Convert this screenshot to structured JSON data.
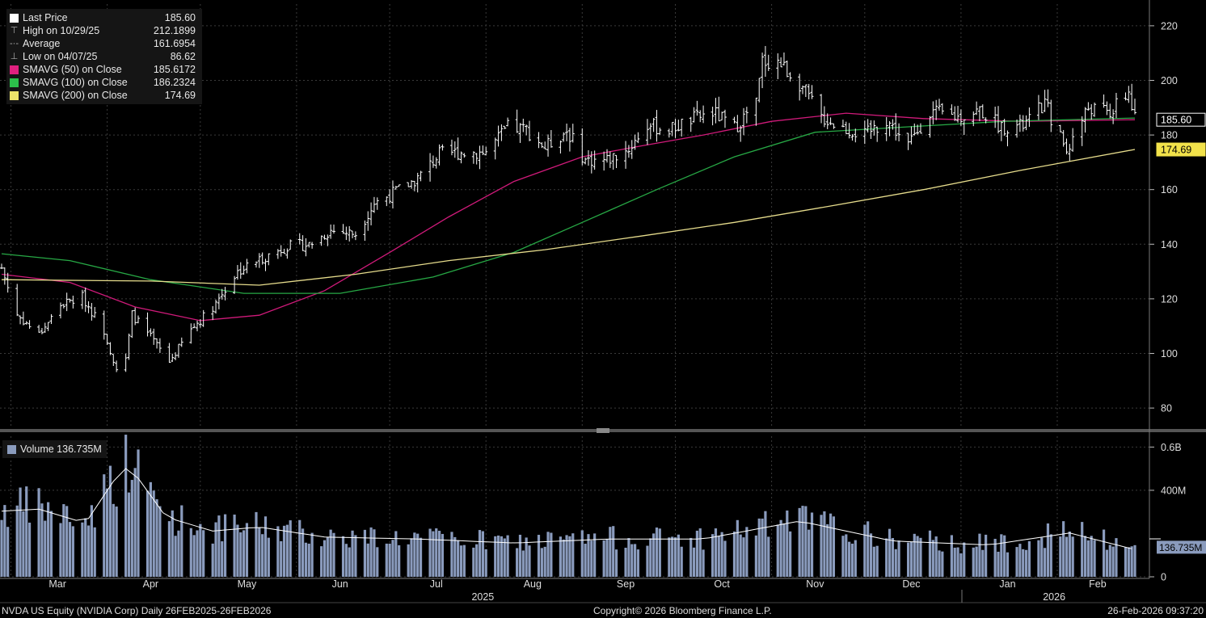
{
  "legend": {
    "last_price_label": "Last Price",
    "last_price_value": "185.60",
    "high_label": "High on 10/29/25",
    "high_value": "212.1899",
    "average_label": "Average",
    "average_value": "161.6954",
    "low_label": "Low on 04/07/25",
    "low_value": "86.62",
    "sma50_label": "SMAVG (50)  on Close",
    "sma50_value": "185.6172",
    "sma100_label": "SMAVG (100)  on Close",
    "sma100_value": "186.2324",
    "sma200_label": "SMAVG (200)  on Close",
    "sma200_value": "174.69",
    "volume_label": "Volume 136.735M"
  },
  "footer": {
    "left": "NVDA US Equity (NVIDIA Corp) Daily 26FEB2025-26FEB2026",
    "center": "Copyright© 2026 Bloomberg Finance L.P.",
    "right": "26-Feb-2026 09:37:20"
  },
  "colors": {
    "background": "#000000",
    "grid": "#3a3a3a",
    "bars": "#ffffff",
    "sma50": "#d01a7a",
    "sma100": "#27a845",
    "sma200": "#e6dc8c",
    "volume": "#8a9bbd",
    "volume_avg": "#ffffff"
  },
  "chart_data": [
    {
      "type": "ohlc",
      "title": "NVDA US Equity (NVIDIA Corp) Daily 26FEB2025-26FEB2026",
      "x_range": [
        "2025-02-26",
        "2026-02-26"
      ],
      "x_month_labels": [
        "Mar",
        "Apr",
        "May",
        "Jun",
        "Jul",
        "Aug",
        "Sep",
        "Oct",
        "Nov",
        "Dec",
        "Jan",
        "Feb"
      ],
      "x_year_labels": [
        "2025",
        "2026"
      ],
      "y_ticks": [
        80,
        100,
        120,
        140,
        160,
        180,
        200,
        220
      ],
      "ylim": [
        75,
        225
      ],
      "grid": true,
      "legend_position": "top-left",
      "price_path_approx": [
        {
          "date": "2025-02-26",
          "close": 131.3
        },
        {
          "date": "2025-03-03",
          "close": 114.1
        },
        {
          "date": "2025-03-10",
          "close": 106.9
        },
        {
          "date": "2025-03-17",
          "close": 117.7
        },
        {
          "date": "2025-03-24",
          "close": 120.7
        },
        {
          "date": "2025-03-31",
          "close": 108.4
        },
        {
          "date": "2025-04-04",
          "close": 94.3
        },
        {
          "date": "2025-04-07",
          "close": 97.6
        },
        {
          "date": "2025-04-09",
          "close": 114.3
        },
        {
          "date": "2025-04-16",
          "close": 104.5
        },
        {
          "date": "2025-04-21",
          "close": 96.9
        },
        {
          "date": "2025-04-28",
          "close": 108.7
        },
        {
          "date": "2025-05-05",
          "close": 117.1
        },
        {
          "date": "2025-05-13",
          "close": 129.9
        },
        {
          "date": "2025-05-20",
          "close": 134.4
        },
        {
          "date": "2025-05-29",
          "close": 139.2
        },
        {
          "date": "2025-06-05",
          "close": 139.9
        },
        {
          "date": "2025-06-12",
          "close": 145.0
        },
        {
          "date": "2025-06-20",
          "close": 143.9
        },
        {
          "date": "2025-06-26",
          "close": 155.0
        },
        {
          "date": "2025-07-03",
          "close": 159.3
        },
        {
          "date": "2025-07-10",
          "close": 164.1
        },
        {
          "date": "2025-07-17",
          "close": 173.0
        },
        {
          "date": "2025-07-24",
          "close": 173.7
        },
        {
          "date": "2025-08-01",
          "close": 173.7
        },
        {
          "date": "2025-08-08",
          "close": 182.7
        },
        {
          "date": "2025-08-14",
          "close": 182.0
        },
        {
          "date": "2025-08-20",
          "close": 175.4
        },
        {
          "date": "2025-08-27",
          "close": 181.6
        },
        {
          "date": "2025-09-02",
          "close": 170.8
        },
        {
          "date": "2025-09-09",
          "close": 170.8
        },
        {
          "date": "2025-09-16",
          "close": 174.9
        },
        {
          "date": "2025-09-22",
          "close": 183.6
        },
        {
          "date": "2025-09-29",
          "close": 181.9
        },
        {
          "date": "2025-10-06",
          "close": 185.5
        },
        {
          "date": "2025-10-13",
          "close": 188.3
        },
        {
          "date": "2025-10-20",
          "close": 182.6
        },
        {
          "date": "2025-10-27",
          "close": 191.5
        },
        {
          "date": "2025-10-29",
          "close": 207.0
        },
        {
          "date": "2025-11-03",
          "close": 206.9
        },
        {
          "date": "2025-11-10",
          "close": 199.1
        },
        {
          "date": "2025-11-17",
          "close": 186.6
        },
        {
          "date": "2025-11-24",
          "close": 182.6
        },
        {
          "date": "2025-12-01",
          "close": 179.9
        },
        {
          "date": "2025-12-08",
          "close": 185.6
        },
        {
          "date": "2025-12-15",
          "close": 176.3
        },
        {
          "date": "2025-12-22",
          "close": 188.6
        },
        {
          "date": "2025-12-31",
          "close": 186.5
        },
        {
          "date": "2026-01-07",
          "close": 189.1
        },
        {
          "date": "2026-01-14",
          "close": 183.1
        },
        {
          "date": "2026-01-21",
          "close": 183.3
        },
        {
          "date": "2026-01-28",
          "close": 191.5
        },
        {
          "date": "2026-02-04",
          "close": 174.2
        },
        {
          "date": "2026-02-11",
          "close": 190.1
        },
        {
          "date": "2026-02-18",
          "close": 187.9
        },
        {
          "date": "2026-02-24",
          "close": 195.6
        },
        {
          "date": "2026-02-26",
          "close": 185.6
        }
      ],
      "series": [
        {
          "name": "SMAVG (50)  on Close",
          "last": 185.6172,
          "approx": [
            {
              "date": "2025-02-26",
              "value": 129
            },
            {
              "date": "2025-03-20",
              "value": 126
            },
            {
              "date": "2025-04-10",
              "value": 117
            },
            {
              "date": "2025-05-01",
              "value": 112
            },
            {
              "date": "2025-05-20",
              "value": 114
            },
            {
              "date": "2025-06-10",
              "value": 123
            },
            {
              "date": "2025-07-01",
              "value": 137
            },
            {
              "date": "2025-07-20",
              "value": 150
            },
            {
              "date": "2025-08-10",
              "value": 163
            },
            {
              "date": "2025-09-01",
              "value": 172
            },
            {
              "date": "2025-09-20",
              "value": 176
            },
            {
              "date": "2025-10-10",
              "value": 180
            },
            {
              "date": "2025-11-01",
              "value": 185
            },
            {
              "date": "2025-11-25",
              "value": 188
            },
            {
              "date": "2025-12-20",
              "value": 186
            },
            {
              "date": "2026-01-20",
              "value": 185
            },
            {
              "date": "2026-02-26",
              "value": 185.6
            }
          ]
        },
        {
          "name": "SMAVG (100)  on Close",
          "last": 186.2324,
          "approx": [
            {
              "date": "2025-02-26",
              "value": 136.5
            },
            {
              "date": "2025-03-20",
              "value": 134
            },
            {
              "date": "2025-04-15",
              "value": 127
            },
            {
              "date": "2025-05-15",
              "value": 122
            },
            {
              "date": "2025-06-15",
              "value": 122
            },
            {
              "date": "2025-07-15",
              "value": 128
            },
            {
              "date": "2025-08-10",
              "value": 137
            },
            {
              "date": "2025-09-01",
              "value": 148
            },
            {
              "date": "2025-09-25",
              "value": 160
            },
            {
              "date": "2025-10-20",
              "value": 172
            },
            {
              "date": "2025-11-15",
              "value": 181
            },
            {
              "date": "2025-12-15",
              "value": 183
            },
            {
              "date": "2026-01-15",
              "value": 185
            },
            {
              "date": "2026-02-26",
              "value": 186.2
            }
          ]
        },
        {
          "name": "SMAVG (200)  on Close",
          "last": 174.69,
          "approx": [
            {
              "date": "2025-02-26",
              "value": 127
            },
            {
              "date": "2025-04-15",
              "value": 126.5
            },
            {
              "date": "2025-05-20",
              "value": 125
            },
            {
              "date": "2025-06-20",
              "value": 129
            },
            {
              "date": "2025-07-20",
              "value": 134
            },
            {
              "date": "2025-08-20",
              "value": 138
            },
            {
              "date": "2025-09-20",
              "value": 143
            },
            {
              "date": "2025-10-20",
              "value": 148
            },
            {
              "date": "2025-11-20",
              "value": 154
            },
            {
              "date": "2025-12-20",
              "value": 160
            },
            {
              "date": "2026-01-20",
              "value": 167
            },
            {
              "date": "2026-02-26",
              "value": 174.7
            }
          ]
        }
      ],
      "right_axis_tags": [
        {
          "text": "185.60",
          "value": 185.6
        },
        {
          "text": "174.69",
          "value": 174.69
        }
      ]
    },
    {
      "type": "bar",
      "series_name": "Volume 136.735M",
      "y_tick_labels": [
        "0",
        "400M",
        "0.6B"
      ],
      "y_tick_values_M": [
        0,
        400,
        600
      ],
      "ylim_M": [
        0,
        650
      ],
      "last_value_M": 136.735,
      "last_value_tag": "136.735M",
      "average_tag_M": 175.5,
      "volume_path_approx_M": [
        {
          "date": "2025-02-26",
          "value": 330
        },
        {
          "date": "2025-03-10",
          "value": 340
        },
        {
          "date": "2025-03-25",
          "value": 270
        },
        {
          "date": "2025-04-03",
          "value": 480
        },
        {
          "date": "2025-04-08",
          "value": 560
        },
        {
          "date": "2025-04-20",
          "value": 300
        },
        {
          "date": "2025-05-05",
          "value": 230
        },
        {
          "date": "2025-05-20",
          "value": 250
        },
        {
          "date": "2025-06-10",
          "value": 200
        },
        {
          "date": "2025-07-10",
          "value": 190
        },
        {
          "date": "2025-08-10",
          "value": 170
        },
        {
          "date": "2025-09-10",
          "value": 190
        },
        {
          "date": "2025-10-10",
          "value": 190
        },
        {
          "date": "2025-11-10",
          "value": 280
        },
        {
          "date": "2025-12-10",
          "value": 180
        },
        {
          "date": "2026-01-10",
          "value": 160
        },
        {
          "date": "2026-02-05",
          "value": 220
        },
        {
          "date": "2026-02-26",
          "value": 137
        }
      ]
    }
  ]
}
